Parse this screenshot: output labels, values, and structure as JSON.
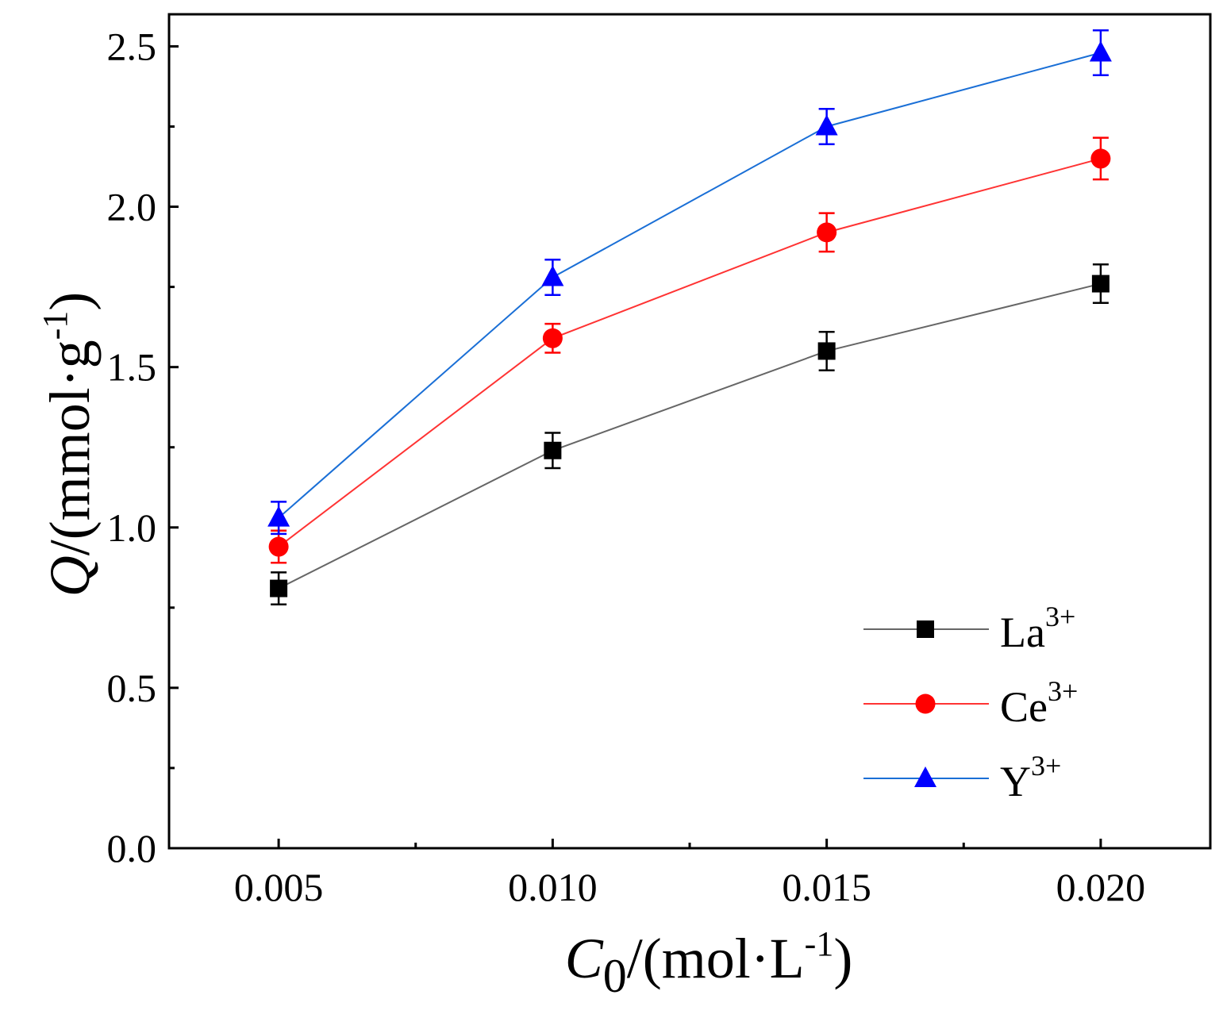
{
  "chart_data": {
    "type": "line",
    "x": [
      0.005,
      0.01,
      0.015,
      0.02
    ],
    "xticks": [
      "0.005",
      "0.010",
      "0.015",
      "0.020"
    ],
    "xlim": [
      0.003,
      0.022
    ],
    "ylim": [
      0,
      2.6
    ],
    "yticks": [
      "0.0",
      "0.5",
      "1.0",
      "1.5",
      "2.0",
      "2.5"
    ],
    "xlabel": {
      "main": "C",
      "sub": "0",
      "rest": "/(mol·L",
      "sup": "-1",
      "close": ")"
    },
    "ylabel": {
      "main": "Q",
      "rest": "/(mmol·g",
      "sup": "-1",
      "close": ")"
    },
    "legend_position": "bottom-right",
    "series": [
      {
        "name": "La",
        "charge": "3+",
        "color": "#666666",
        "marker_color": "#000000",
        "marker": "square",
        "values": [
          0.81,
          1.24,
          1.55,
          1.76
        ],
        "errors": [
          0.05,
          0.055,
          0.06,
          0.06
        ]
      },
      {
        "name": "Ce",
        "charge": "3+",
        "color": "#ff3333",
        "marker_color": "#ff0000",
        "marker": "circle",
        "values": [
          0.94,
          1.59,
          1.92,
          2.15
        ],
        "errors": [
          0.05,
          0.045,
          0.06,
          0.065
        ]
      },
      {
        "name": "Y",
        "charge": "3+",
        "color": "#1a6fd6",
        "marker_color": "#0000ff",
        "marker": "triangle",
        "values": [
          1.03,
          1.78,
          2.25,
          2.48
        ],
        "errors": [
          0.05,
          0.055,
          0.055,
          0.07
        ]
      }
    ]
  }
}
